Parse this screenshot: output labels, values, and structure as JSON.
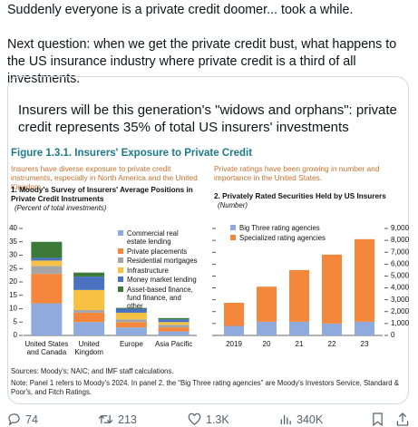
{
  "tweet": {
    "text": [
      "Suddenly everyone is a private credit doomer... took a while.",
      "Next question: when we get the private credit bust, what happens to the US insurance industry where private credit is a third of all investments."
    ]
  },
  "card": {
    "heading": "Insurers will be this generation's \"widows and orphans\": private credit represents 35% of total US insurers' investments",
    "figure_title": "Figure 1.3.1. Insurers' Exposure to Private Credit",
    "sources": "Sources: Moody's; NAIC; and IMF staff calculations.",
    "note": "Note: Panel 1 refers to Moody's 2024. In panel 2, the “Big Three rating agencies” are Moody's Investors Service, Standard & Poor's, and Fitch Ratings."
  },
  "chart_data": [
    {
      "type": "bar",
      "stacked": true,
      "subtitle": "Insurers have diverse exposure to private credit instruments, especially in North America and the United Kingdom.",
      "title": "1. Moody's Survey of Insurers' Average Positions in Private Credit Instruments",
      "ylabel": "(Percent of total investments)",
      "y_axis_side": "left",
      "categories": [
        "United States and Canada",
        "United Kingdom",
        "Europe",
        "Asia Pacific"
      ],
      "series": [
        {
          "name": "Commercial real estate lending",
          "color": "#8faadc",
          "values": [
            12,
            5,
            3,
            1.5
          ]
        },
        {
          "name": "Private placements",
          "color": "#f4873b",
          "values": [
            11,
            3.5,
            2,
            1.5
          ]
        },
        {
          "name": "Residential mortgages",
          "color": "#a6a6a6",
          "values": [
            3,
            1,
            1,
            1
          ]
        },
        {
          "name": "Infrastructure",
          "color": "#f7c244",
          "values": [
            2,
            7.5,
            2.5,
            1
          ]
        },
        {
          "name": "Money market lending",
          "color": "#4a72c2",
          "values": [
            1,
            5,
            1.5,
            1
          ]
        },
        {
          "name": "Asset-based finance, fund finance, and other",
          "color": "#3d7a3a",
          "values": [
            6,
            1.5,
            0.3,
            0.5
          ]
        }
      ],
      "ylim": [
        0,
        40
      ],
      "yticks": [
        0,
        5,
        10,
        15,
        20,
        25,
        30,
        35,
        40
      ]
    },
    {
      "type": "bar",
      "stacked": true,
      "subtitle": "Private ratings have been growing in number and importance in the United States.",
      "title": "2. Privately Rated Securities Held by US Insurers",
      "ylabel": "(Number)",
      "y_axis_side": "right",
      "categories": [
        "2019",
        "20",
        "21",
        "22",
        "23"
      ],
      "series": [
        {
          "name": "Big Three rating agencies",
          "color": "#8faadc",
          "values": [
            800,
            1150,
            1150,
            1000,
            1150
          ]
        },
        {
          "name": "Specialized rating agencies",
          "color": "#f4873b",
          "values": [
            1950,
            2950,
            4350,
            5800,
            6950
          ]
        }
      ],
      "ylim": [
        0,
        9000
      ],
      "yticks": [
        0,
        {
          "value": 1000,
          "label": "1,000"
        },
        {
          "value": 2000,
          "label": "2,000"
        },
        {
          "value": 3000,
          "label": "3,000"
        },
        {
          "value": 4000,
          "label": "4,000"
        },
        {
          "value": 5000,
          "label": "5,000"
        },
        {
          "value": 6000,
          "label": "6,000"
        },
        {
          "value": 7000,
          "label": "7,000"
        },
        {
          "value": 8000,
          "label": "8,000"
        },
        {
          "value": 9000,
          "label": "9,000"
        }
      ]
    }
  ],
  "actions": {
    "replies": "74",
    "reposts": "213",
    "likes": "1.3K",
    "views": "340K"
  }
}
